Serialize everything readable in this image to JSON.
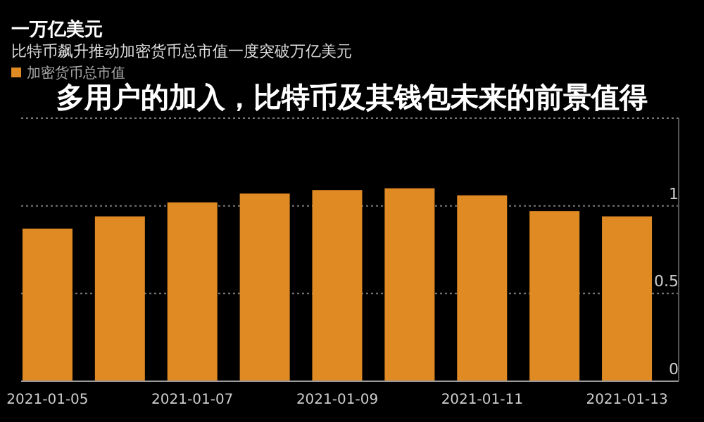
{
  "chart_data": {
    "type": "bar",
    "title": "一万亿美元",
    "subtitle": "比特币飙升推动加密货币总市值一度突破万亿美元",
    "annotations": [
      "多用户的加入，比特币及其钱包未来的前景值得"
    ],
    "categories": [
      "2021-01-05",
      null,
      "2021-01-07",
      null,
      "2021-01-09",
      null,
      "2021-01-11",
      null,
      "2021-01-13"
    ],
    "series": [
      {
        "name": "加密货币总市值",
        "color": "#e08a24",
        "values": [
          0.87,
          0.94,
          1.02,
          1.07,
          1.09,
          1.1,
          1.06,
          0.97,
          0.94
        ]
      }
    ],
    "ylim": [
      0,
      1.5
    ],
    "yticks": [
      0,
      0.5,
      1.0,
      {
        "value": 1.5,
        "label": null
      }
    ],
    "grid": "y",
    "legend": "top left"
  }
}
